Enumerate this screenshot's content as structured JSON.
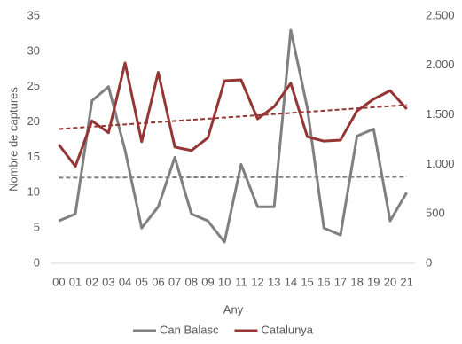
{
  "chart_data": {
    "type": "line",
    "x_label": "Any",
    "y_label": "Nombre de captures",
    "categories": [
      "00",
      "01",
      "02",
      "03",
      "04",
      "05",
      "06",
      "07",
      "08",
      "09",
      "10",
      "11",
      "12",
      "13",
      "14",
      "15",
      "16",
      "17",
      "18",
      "19",
      "20",
      "21"
    ],
    "series": [
      {
        "name": "Can Balasc",
        "color": "#808080",
        "values": [
          6,
          7,
          23,
          25,
          16,
          5,
          8,
          15,
          7,
          6,
          3,
          14,
          8,
          8,
          33,
          22,
          5,
          4,
          18,
          19,
          6,
          10
        ]
      },
      {
        "name": "Catalunya",
        "color": "#943634",
        "axis": "y2",
        "values": [
          1200,
          980,
          1440,
          1320,
          2025,
          1230,
          1930,
          1175,
          1140,
          1270,
          1845,
          1855,
          1460,
          1585,
          1820,
          1280,
          1235,
          1245,
          1540,
          1660,
          1745,
          1560
        ]
      }
    ],
    "ylim": [
      0,
      35
    ],
    "yticks": [
      0,
      5,
      10,
      15,
      20,
      25,
      30,
      35
    ],
    "y2lim": [
      0,
      2500
    ],
    "y2ticks": [
      0,
      500,
      {
        "value": 1000,
        "label": "1.000"
      },
      {
        "value": 1500,
        "label": "1.500"
      },
      {
        "value": 2000,
        "label": "2.000"
      },
      {
        "value": 2500,
        "label": "2.500"
      }
    ],
    "trendline": true,
    "grid": false,
    "legend": "bottom"
  }
}
